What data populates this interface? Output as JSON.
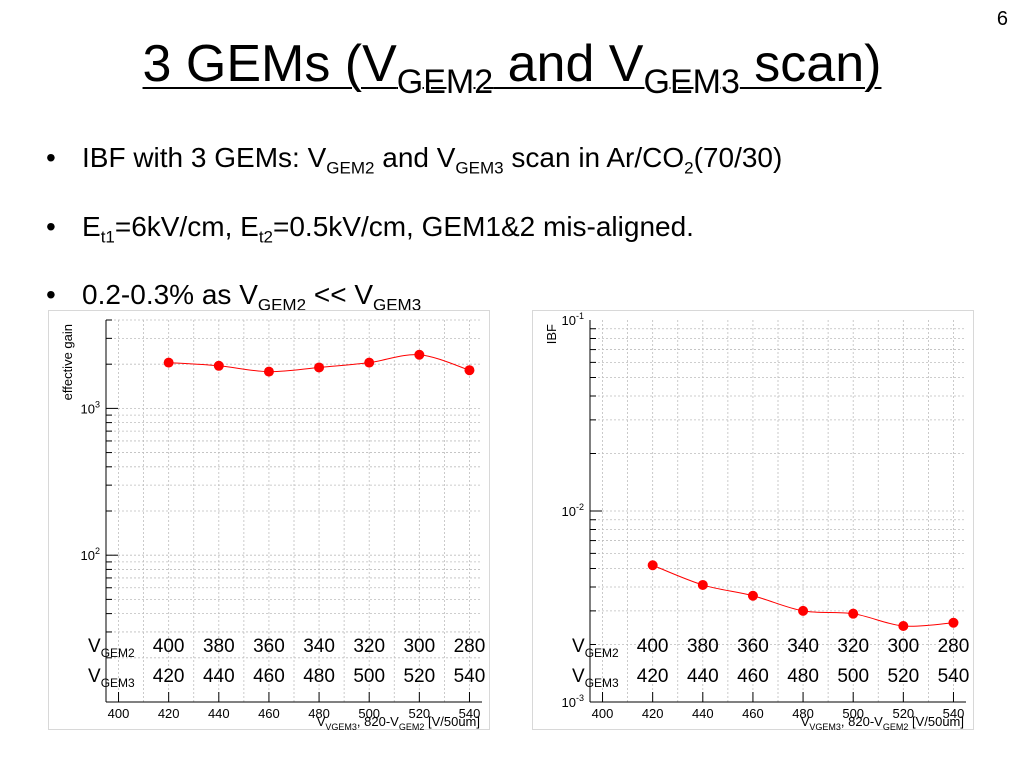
{
  "slide_number": "6",
  "title": {
    "text_a": "3 GEMs (V",
    "sub_a": "GEM2",
    "text_b": " and V",
    "sub_b": "GEM3",
    "text_c": " scan)"
  },
  "bullets": [
    {
      "t1": "IBF with 3 GEMs: V",
      "s1": "GEM2",
      "t2": " and V",
      "s2": "GEM3",
      "t3": " scan in Ar/CO",
      "s3": "2",
      "t4": "(70/30)"
    },
    {
      "t1": "E",
      "s1": "t1",
      "t2": "=6kV/cm, E",
      "s2": "t2",
      "t3": "=0.5kV/cm, GEM1&2 mis-aligned."
    },
    {
      "t1": "0.2-0.3% as V",
      "s1": "GEM2",
      "t2": " << V",
      "s2": "GEM3"
    }
  ],
  "voltage_table": {
    "row1_label": "V",
    "row1_sub": "GEM2",
    "row2_label": "V",
    "row2_sub": "GEM3",
    "vgem2": [
      "400",
      "380",
      "360",
      "340",
      "320",
      "300",
      "280"
    ],
    "vgem3": [
      "420",
      "440",
      "460",
      "480",
      "500",
      "520",
      "540"
    ]
  },
  "chart_data": [
    {
      "type": "scatter",
      "ylabel": "effective gain",
      "xlabel": "V_VGEM3, 820-V_GEM2 [V/50um]",
      "xlim": [
        395,
        545
      ],
      "ylim": [
        10,
        4000
      ],
      "yscale": "log",
      "x_ticks": [
        "400",
        "420",
        "440",
        "460",
        "480",
        "500",
        "520",
        "540"
      ],
      "y_ticks": [
        {
          "value": 100,
          "label": "10",
          "exp": "2"
        },
        {
          "value": 1000,
          "label": "10",
          "exp": "3"
        }
      ],
      "grid": true,
      "color": "#ff0000",
      "x": [
        420,
        440,
        460,
        480,
        500,
        520,
        540
      ],
      "y": [
        2050,
        1950,
        1780,
        1900,
        2050,
        2320,
        1820
      ]
    },
    {
      "type": "scatter",
      "ylabel": "IBF",
      "xlabel": "V_VGEM3, 820-V_GEM2 [V/50um]",
      "xlim": [
        395,
        545
      ],
      "ylim": [
        0.001,
        0.1
      ],
      "yscale": "log",
      "x_ticks": [
        "400",
        "420",
        "440",
        "460",
        "480",
        "500",
        "520",
        "540"
      ],
      "y_ticks": [
        {
          "value": 0.1,
          "label": "10",
          "exp": "-1"
        },
        {
          "value": 0.01,
          "label": "10",
          "exp": "-2"
        },
        {
          "value": 0.001,
          "label": "10",
          "exp": "-3"
        }
      ],
      "grid": true,
      "color": "#ff0000",
      "x": [
        420,
        440,
        460,
        480,
        500,
        520,
        540
      ],
      "y": [
        0.0052,
        0.0041,
        0.0036,
        0.003,
        0.0029,
        0.0025,
        0.0026
      ]
    }
  ]
}
